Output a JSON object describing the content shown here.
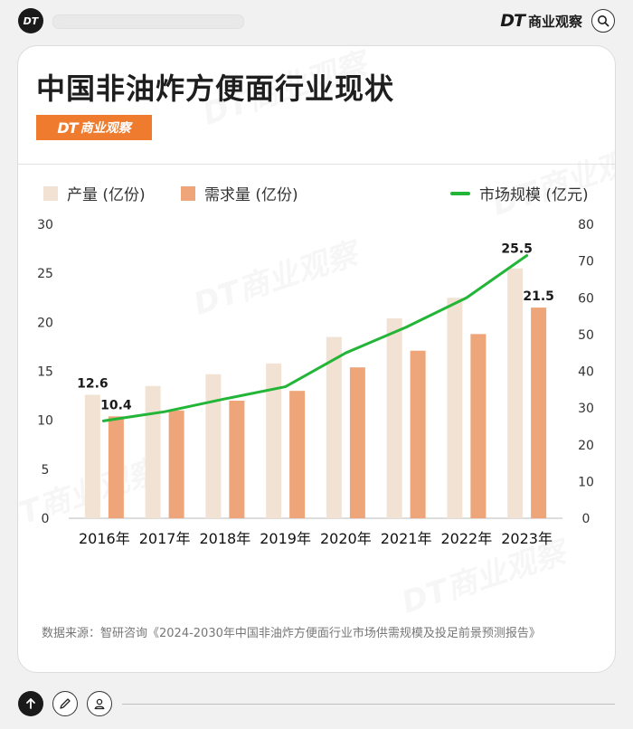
{
  "header": {
    "logo_text": "DT",
    "brand_dt": "DT",
    "brand_name": "商业观察",
    "search_icon": "search-icon"
  },
  "card": {
    "title": "中国非油炸方便面行业现状",
    "brand_badge_dt": "DT",
    "brand_badge_name": "商业观察"
  },
  "chart_data": {
    "type": "bar",
    "categories": [
      "2016年",
      "2017年",
      "2018年",
      "2019年",
      "2020年",
      "2021年",
      "2022年",
      "2023年"
    ],
    "series": [
      {
        "name": "产量 (亿份)",
        "type": "bar",
        "axis": "left",
        "color": "#f2e2d4",
        "values": [
          12.6,
          13.5,
          14.7,
          15.8,
          18.5,
          20.4,
          22.5,
          25.5
        ]
      },
      {
        "name": "需求量 (亿份)",
        "type": "bar",
        "axis": "left",
        "color": "#eea57a",
        "values": [
          10.4,
          11.0,
          12.0,
          13.0,
          15.4,
          17.1,
          18.8,
          21.5
        ]
      },
      {
        "name": "市场规模 (亿元)",
        "type": "line",
        "axis": "right",
        "color": "#22b537",
        "values": [
          26.5,
          29.0,
          32.5,
          35.8,
          45.0,
          52.0,
          60.0,
          71.5
        ]
      }
    ],
    "y_left": {
      "min": 0,
      "max": 30,
      "ticks": [
        0,
        5,
        10,
        15,
        20,
        25,
        30
      ]
    },
    "y_right": {
      "min": 0,
      "max": 80,
      "ticks": [
        0,
        10,
        20,
        30,
        40,
        50,
        60,
        70,
        80
      ]
    },
    "data_labels": [
      {
        "series": 0,
        "index": 0,
        "text": "12.6"
      },
      {
        "series": 1,
        "index": 0,
        "text": "10.4"
      },
      {
        "series": 0,
        "index": 7,
        "text": "25.5"
      },
      {
        "series": 1,
        "index": 7,
        "text": "21.5"
      }
    ],
    "legend_position": "top"
  },
  "source": {
    "text": "数据来源：智研咨询《2024-2030年中国非油炸方便面行业市场供需规模及投足前景预测报告》"
  },
  "toolbar": {
    "up_icon": "arrow-up-icon",
    "edit_icon": "pencil-icon",
    "user_icon": "user-icon"
  },
  "watermark_text": "DT商业观察"
}
